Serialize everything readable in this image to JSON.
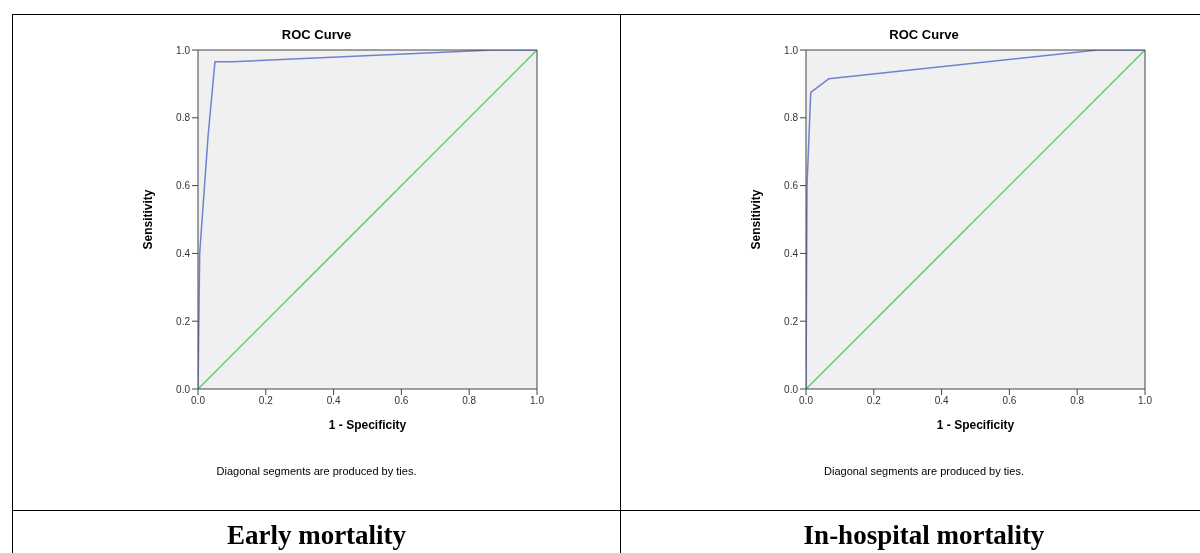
{
  "chart_data": [
    {
      "type": "line",
      "title": "ROC Curve",
      "xlabel": "1 - Specificity",
      "ylabel": "Sensitivity",
      "xlim": [
        0,
        1
      ],
      "ylim": [
        0,
        1
      ],
      "xticks": [
        {
          "value": 0,
          "label": "0.0"
        },
        {
          "value": 0.2,
          "label": "0.2"
        },
        {
          "value": 0.4,
          "label": "0.4"
        },
        {
          "value": 0.6,
          "label": "0.6"
        },
        {
          "value": 0.8,
          "label": "0.8"
        },
        {
          "value": 1,
          "label": "1.0"
        }
      ],
      "yticks": [
        {
          "value": 0,
          "label": "0.0"
        },
        {
          "value": 0.2,
          "label": "0.2"
        },
        {
          "value": 0.4,
          "label": "0.4"
        },
        {
          "value": 0.6,
          "label": "0.6"
        },
        {
          "value": 0.8,
          "label": "0.8"
        },
        {
          "value": 1,
          "label": "1.0"
        }
      ],
      "grid": false,
      "marker": "none",
      "line_style": "solid",
      "series": [
        {
          "color": "#6f82d0",
          "x": [
            0,
            0.005,
            0.03,
            0.05,
            0.1,
            0.87,
            1
          ],
          "values": [
            0,
            0.4,
            0.75,
            0.965,
            0.965,
            1,
            1
          ]
        },
        {
          "color": "#5fcd6e",
          "x": [
            0,
            1
          ],
          "values": [
            0,
            1
          ]
        }
      ],
      "annotations": [
        "Diagonal segments are produced by ties.",
        "Early mortality"
      ]
    },
    {
      "type": "line",
      "title": "ROC Curve",
      "xlabel": "1 - Specificity",
      "ylabel": "Sensitivity",
      "xlim": [
        0,
        1
      ],
      "ylim": [
        0,
        1
      ],
      "xticks": [
        {
          "value": 0,
          "label": "0.0"
        },
        {
          "value": 0.2,
          "label": "0.2"
        },
        {
          "value": 0.4,
          "label": "0.4"
        },
        {
          "value": 0.6,
          "label": "0.6"
        },
        {
          "value": 0.8,
          "label": "0.8"
        },
        {
          "value": 1,
          "label": "1.0"
        }
      ],
      "yticks": [
        {
          "value": 0,
          "label": "0.0"
        },
        {
          "value": 0.2,
          "label": "0.2"
        },
        {
          "value": 0.4,
          "label": "0.4"
        },
        {
          "value": 0.6,
          "label": "0.6"
        },
        {
          "value": 0.8,
          "label": "0.8"
        },
        {
          "value": 1,
          "label": "1.0"
        }
      ],
      "grid": false,
      "marker": "none",
      "line_style": "solid",
      "series": [
        {
          "color": "#6f82d0",
          "x": [
            0,
            0.003,
            0.014,
            0.067,
            0.86,
            1
          ],
          "values": [
            0,
            0.6,
            0.875,
            0.915,
            1,
            1
          ]
        },
        {
          "color": "#5fcd6e",
          "x": [
            0,
            1
          ],
          "values": [
            0,
            1
          ]
        }
      ],
      "annotations": [
        "Diagonal segments are produced by ties.",
        "In-hospital mortality"
      ]
    }
  ]
}
